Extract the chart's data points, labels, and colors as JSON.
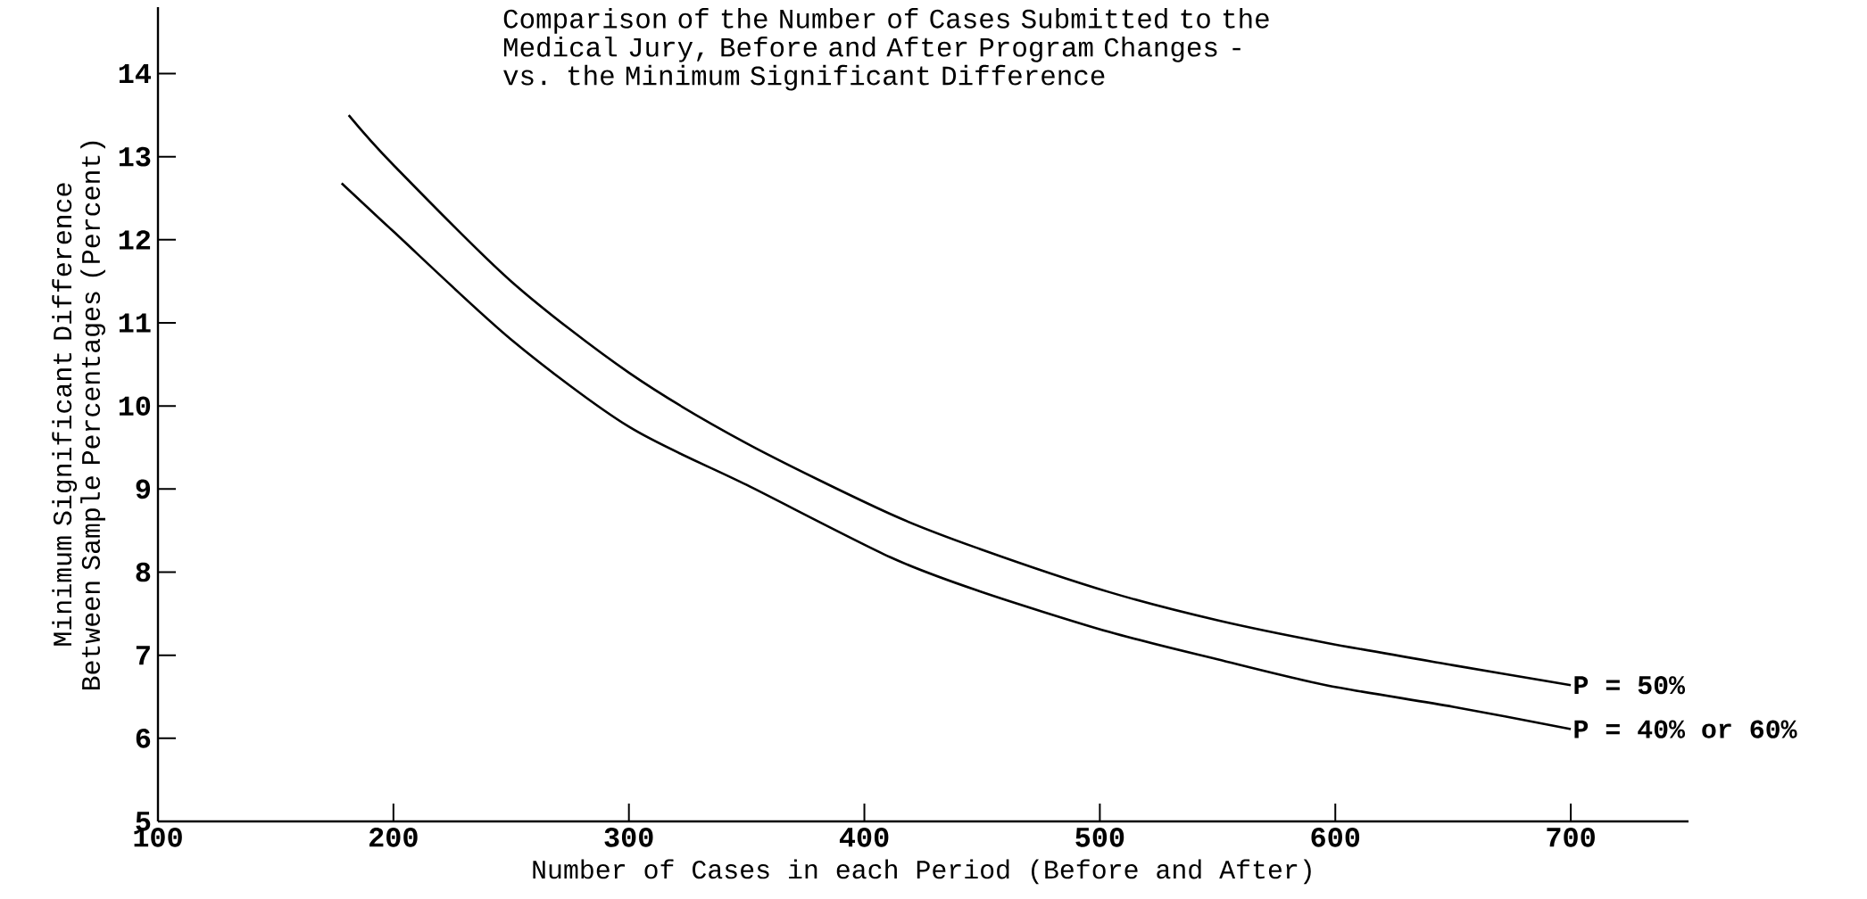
{
  "chart_data": {
    "type": "line",
    "title": "Comparison of the Number of Cases Submitted to the Medical Jury, Before and After Program Changes - vs. the Minimum Significant Difference",
    "xlabel": "Number of Cases in each Period (Before and After)",
    "ylabel": "Minimum Significant Difference Between Sample Percentages (Percent)",
    "xlim": [
      100,
      750
    ],
    "ylim": [
      5,
      14.8
    ],
    "xticks": [
      100,
      200,
      300,
      400,
      500,
      600,
      700
    ],
    "yticks": [
      5,
      6,
      7,
      8,
      9,
      10,
      11,
      12,
      13,
      14
    ],
    "marker": "none",
    "line_style": "solid",
    "series": [
      {
        "color": "#000000",
        "x": [
          181,
          200,
          250,
          300,
          350,
          411,
          449,
          504,
          550,
          596,
          650,
          700
        ],
        "values": [
          13.5,
          12.9,
          11.5,
          10.4,
          9.55,
          8.7,
          8.28,
          7.76,
          7.42,
          7.15,
          6.88,
          6.64
        ]
      },
      {
        "color": "#000000",
        "x": [
          178,
          200,
          250,
          300,
          350,
          411,
          449,
          504,
          550,
          596,
          650,
          700
        ],
        "values": [
          12.68,
          12.1,
          10.8,
          9.75,
          9.05,
          8.18,
          7.77,
          7.28,
          6.95,
          6.64,
          6.38,
          6.11
        ]
      }
    ],
    "annotations": [
      {
        "text": "P = 50%",
        "x": 700,
        "y": 6.64
      },
      {
        "text": "P = 40% or 60%",
        "x": 700,
        "y": 6.11
      }
    ]
  }
}
